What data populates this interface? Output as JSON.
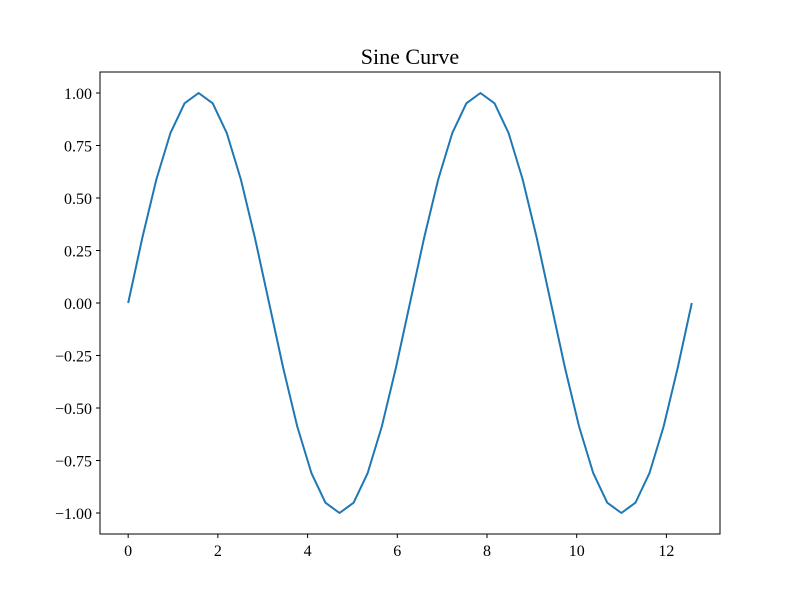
{
  "chart_data": {
    "type": "line",
    "title": "Sine Curve",
    "xlabel": "",
    "ylabel": "",
    "xlim": [
      -0.628,
      13.195
    ],
    "ylim": [
      -1.1,
      1.1
    ],
    "grid": false,
    "x_ticks": [
      0,
      2,
      4,
      6,
      8,
      10,
      12
    ],
    "x_tick_labels": [
      "0",
      "2",
      "4",
      "6",
      "8",
      "10",
      "12"
    ],
    "y_ticks": [
      1,
      0.75,
      0.5,
      0.25,
      0,
      -0.25,
      -0.5,
      -0.75,
      -1
    ],
    "y_tick_labels": [
      "1.00",
      "0.75",
      "0.50",
      "0.25",
      "0.00",
      "−0.25",
      "−0.50",
      "−0.75",
      "−1.00"
    ],
    "series": [
      {
        "color": "#1f77b4",
        "x": [
          0,
          0.314,
          0.628,
          0.942,
          1.257,
          1.571,
          1.885,
          2.199,
          2.513,
          2.827,
          3.142,
          3.456,
          3.77,
          4.084,
          4.398,
          4.712,
          5.027,
          5.341,
          5.655,
          5.969,
          6.283,
          6.597,
          6.912,
          7.226,
          7.54,
          7.854,
          8.168,
          8.482,
          8.796,
          9.111,
          9.425,
          9.739,
          10.053,
          10.367,
          10.681,
          10.996,
          11.31,
          11.624,
          11.938,
          12.252,
          12.566
        ],
        "y": [
          0,
          0.309,
          0.588,
          0.809,
          0.951,
          1,
          0.951,
          0.809,
          0.588,
          0.309,
          0,
          -0.309,
          -0.588,
          -0.809,
          -0.951,
          -1,
          -0.951,
          -0.809,
          -0.588,
          -0.309,
          0,
          0.309,
          0.588,
          0.809,
          0.951,
          1,
          0.951,
          0.809,
          0.588,
          0.309,
          0,
          -0.309,
          -0.588,
          -0.809,
          -0.951,
          -1,
          -0.951,
          -0.809,
          -0.588,
          -0.309,
          0
        ]
      }
    ]
  }
}
